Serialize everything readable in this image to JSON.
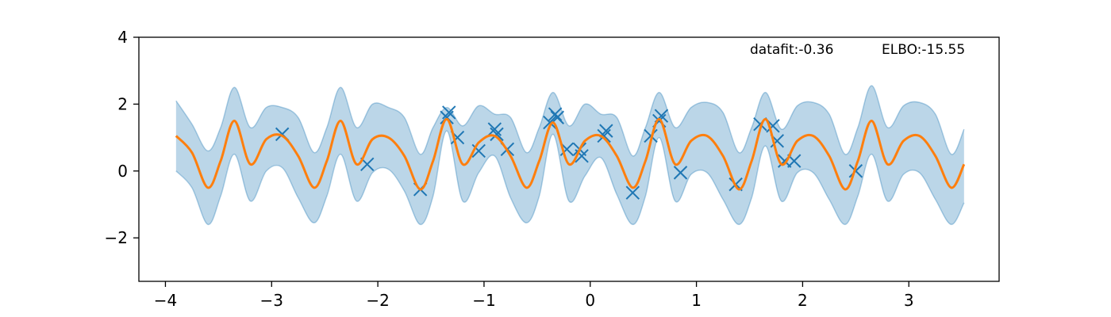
{
  "chart_data": {
    "type": "line",
    "title": "",
    "xlabel": "",
    "ylabel": "",
    "xlim": [
      -4.25,
      3.85
    ],
    "ylim": [
      -3.3,
      4.0
    ],
    "x_ticks": [
      -4,
      -3,
      -2,
      -1,
      0,
      1,
      2,
      3
    ],
    "y_ticks": [
      -2,
      0,
      2,
      4
    ],
    "grid": false,
    "annotations": {
      "datafit": "datafit:-0.36",
      "elbo": "ELBO:-15.55"
    },
    "colors": {
      "mean": "#ff7f0e",
      "band": "#1f77b4",
      "points": "#1f77b4"
    },
    "band_alpha": 0.3,
    "mean_curve": {
      "x": [
        -3.9,
        -3.75,
        -3.6,
        -3.48,
        -3.35,
        -3.2,
        -3.05,
        -2.9,
        -2.75,
        -2.6,
        -2.48,
        -2.35,
        -2.2,
        -2.05,
        -1.9,
        -1.75,
        -1.6,
        -1.48,
        -1.35,
        -1.2,
        -1.05,
        -0.9,
        -0.75,
        -0.6,
        -0.48,
        -0.35,
        -0.2,
        -0.05,
        0.1,
        0.25,
        0.4,
        0.52,
        0.65,
        0.8,
        0.95,
        1.1,
        1.25,
        1.4,
        1.52,
        1.65,
        1.8,
        1.95,
        2.1,
        2.25,
        2.4,
        2.52,
        2.65,
        2.8,
        2.95,
        3.1,
        3.25,
        3.4,
        3.52
      ],
      "y": [
        1.05,
        0.55,
        -0.5,
        0.3,
        1.5,
        0.2,
        0.95,
        1.05,
        0.45,
        -0.5,
        0.3,
        1.5,
        0.2,
        0.95,
        1.0,
        0.45,
        -0.55,
        0.3,
        1.55,
        0.2,
        0.85,
        1.05,
        0.45,
        -0.5,
        0.3,
        1.45,
        0.2,
        0.9,
        1.05,
        0.45,
        -0.5,
        0.3,
        1.55,
        0.2,
        0.9,
        1.05,
        0.45,
        -0.55,
        0.3,
        1.55,
        0.2,
        0.9,
        1.05,
        0.45,
        -0.55,
        0.3,
        1.5,
        0.2,
        0.9,
        1.05,
        0.45,
        -0.5,
        0.2
      ]
    },
    "band": {
      "x": [
        -3.9,
        -3.75,
        -3.6,
        -3.48,
        -3.35,
        -3.2,
        -3.05,
        -2.9,
        -2.75,
        -2.6,
        -2.48,
        -2.35,
        -2.2,
        -2.05,
        -1.9,
        -1.75,
        -1.6,
        -1.48,
        -1.35,
        -1.2,
        -1.05,
        -0.9,
        -0.75,
        -0.6,
        -0.48,
        -0.35,
        -0.2,
        -0.05,
        0.1,
        0.25,
        0.4,
        0.52,
        0.65,
        0.8,
        0.95,
        1.1,
        1.25,
        1.4,
        1.52,
        1.65,
        1.8,
        1.95,
        2.1,
        2.25,
        2.4,
        2.52,
        2.65,
        2.8,
        2.95,
        3.1,
        3.25,
        3.4,
        3.52
      ],
      "upper": [
        2.1,
        1.4,
        0.6,
        1.3,
        2.5,
        1.3,
        1.9,
        1.9,
        1.6,
        0.55,
        1.3,
        2.5,
        1.3,
        2.0,
        1.9,
        1.6,
        0.5,
        1.3,
        1.9,
        1.35,
        1.95,
        1.7,
        1.6,
        0.55,
        1.3,
        2.35,
        1.35,
        2.0,
        1.7,
        1.6,
        0.45,
        1.3,
        2.35,
        1.3,
        1.9,
        2.05,
        1.75,
        0.55,
        1.3,
        2.35,
        1.25,
        1.95,
        2.05,
        1.7,
        0.5,
        1.3,
        2.55,
        1.3,
        1.95,
        2.05,
        1.7,
        0.5,
        1.25
      ],
      "lower": [
        0.0,
        -0.5,
        -1.6,
        -0.75,
        0.5,
        -0.9,
        0.0,
        0.1,
        -0.8,
        -1.55,
        -0.75,
        0.5,
        -0.9,
        -0.05,
        0.05,
        -0.6,
        -1.6,
        -0.75,
        1.2,
        -0.9,
        -0.05,
        0.45,
        -0.8,
        -1.55,
        -0.75,
        1.1,
        -0.9,
        -0.15,
        0.4,
        -0.7,
        -1.6,
        -0.75,
        1.0,
        -0.9,
        -0.1,
        -0.05,
        -0.85,
        -1.6,
        -0.8,
        0.75,
        -0.9,
        -0.05,
        -0.05,
        -0.85,
        -1.6,
        -0.75,
        0.5,
        -0.9,
        -0.1,
        -0.05,
        -0.85,
        -1.6,
        -0.95
      ]
    },
    "points": {
      "x": [
        -2.9,
        -2.1,
        -1.6,
        -1.35,
        -1.33,
        -1.25,
        -1.05,
        -0.9,
        -0.88,
        -0.78,
        -0.38,
        -0.33,
        -0.31,
        -0.22,
        -0.1,
        -0.08,
        0.13,
        0.15,
        0.4,
        0.57,
        0.65,
        0.67,
        0.85,
        1.37,
        1.6,
        1.72,
        1.76,
        1.83,
        1.92,
        2.5
      ],
      "y": [
        1.1,
        0.2,
        -0.55,
        1.6,
        1.75,
        1.0,
        0.6,
        1.25,
        1.1,
        0.65,
        1.45,
        1.7,
        1.6,
        0.65,
        0.65,
        0.45,
        1.05,
        1.2,
        -0.65,
        1.05,
        1.5,
        1.65,
        -0.05,
        -0.4,
        1.4,
        1.35,
        0.9,
        0.3,
        0.3,
        0.0
      ]
    }
  }
}
